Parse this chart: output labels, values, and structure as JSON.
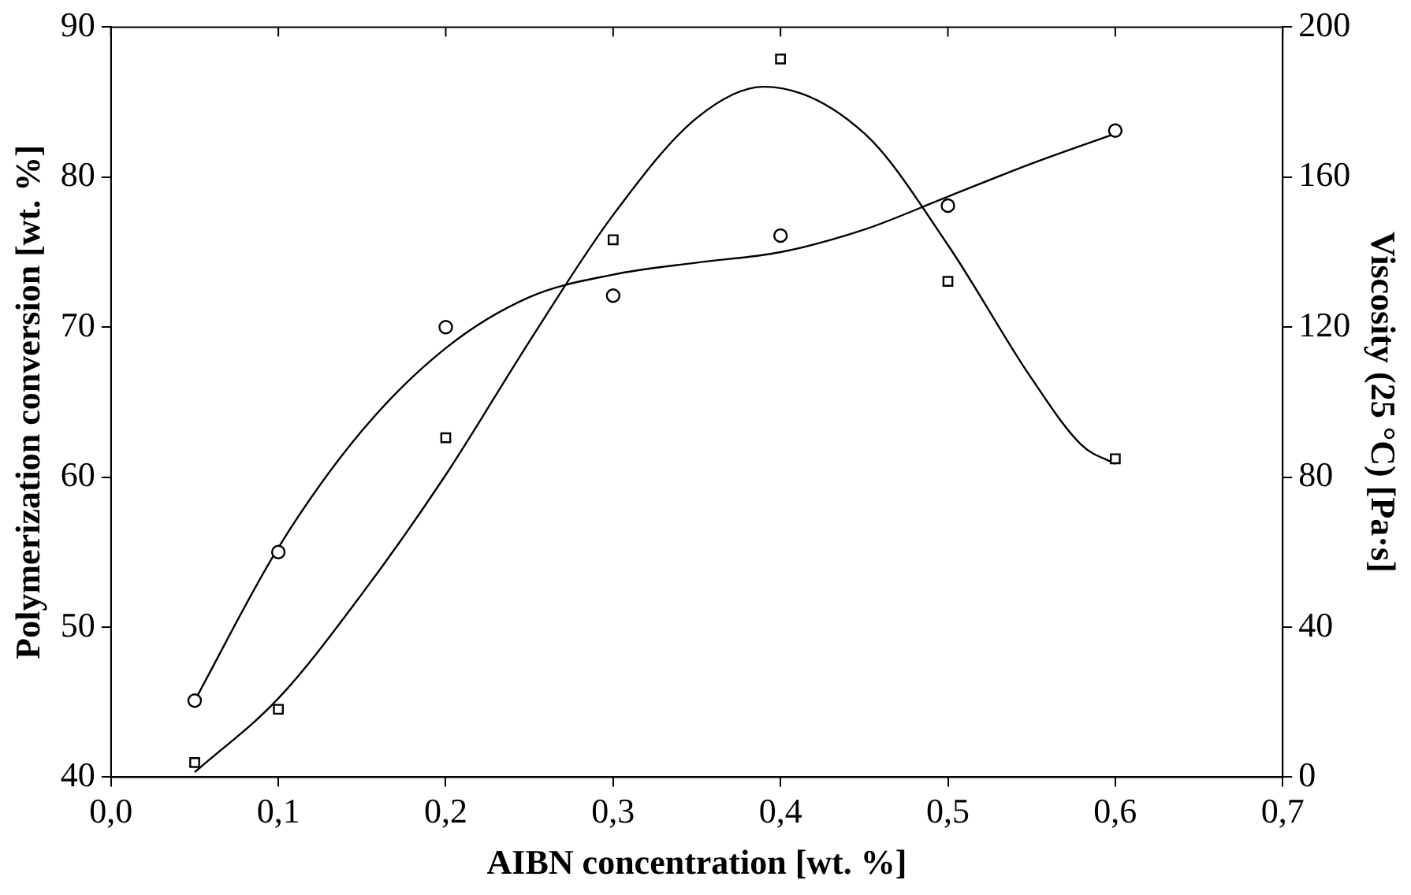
{
  "chart_data": {
    "type": "scatter",
    "xlabel": "AIBN concentration [wt. %]",
    "ylabel": "Polymerization conversion [wt. %]",
    "y2label": "Viscosity (25 °C) [Pa·s]",
    "xlim": [
      0,
      0.7
    ],
    "xticks": [
      {
        "value": 0,
        "label": "0,0"
      },
      {
        "value": 0.1,
        "label": "0,1"
      },
      {
        "value": 0.2,
        "label": "0,2"
      },
      {
        "value": 0.3,
        "label": "0,3"
      },
      {
        "value": 0.4,
        "label": "0,4"
      },
      {
        "value": 0.5,
        "label": "0,5"
      },
      {
        "value": 0.6,
        "label": "0,6"
      },
      {
        "value": 0.7,
        "label": "0,7"
      }
    ],
    "ylim": [
      40,
      90
    ],
    "yticks": [
      40,
      50,
      60,
      70,
      80,
      90
    ],
    "y2lim": [
      0,
      200
    ],
    "y2ticks": [
      0,
      40,
      80,
      120,
      160,
      200
    ],
    "grid": false,
    "legend": false,
    "series": [
      {
        "type": "scatter",
        "marker": "circle",
        "color": "#000000",
        "x": [
          0.05,
          0.1,
          0.2,
          0.3,
          0.4,
          0.5,
          0.6
        ],
        "values": [
          45.1,
          55,
          70,
          72.1,
          76.1,
          78.1,
          83.1
        ]
      },
      {
        "type": "line",
        "marker": "none",
        "color": "#000000",
        "x": [
          0.05,
          0.1,
          0.15,
          0.2,
          0.25,
          0.3,
          0.35,
          0.4,
          0.45,
          0.5,
          0.55,
          0.6
        ],
        "values": [
          45.1,
          55.3,
          63.1,
          68.6,
          72.0,
          73.5,
          74.3,
          75.0,
          76.5,
          78.7,
          80.9,
          82.9
        ]
      },
      {
        "type": "scatter",
        "marker": "square",
        "axis": "y2",
        "color": "#000000",
        "x": [
          0.05,
          0.1,
          0.2,
          0.3,
          0.4,
          0.5,
          0.6
        ],
        "values": [
          3.9,
          18.1,
          90.5,
          143.3,
          191.5,
          132.2,
          84.9
        ]
      },
      {
        "type": "line",
        "marker": "none",
        "axis": "y2",
        "color": "#000000",
        "x": [
          0.05,
          0.1,
          0.15,
          0.2,
          0.25,
          0.3,
          0.35,
          0.39,
          0.45,
          0.5,
          0.55,
          0.58,
          0.6
        ],
        "values": [
          1.3,
          21,
          48.9,
          80.6,
          116.2,
          149.9,
          175.8,
          184.1,
          171.7,
          141.9,
          106.3,
          88.5,
          83.5
        ]
      }
    ]
  }
}
